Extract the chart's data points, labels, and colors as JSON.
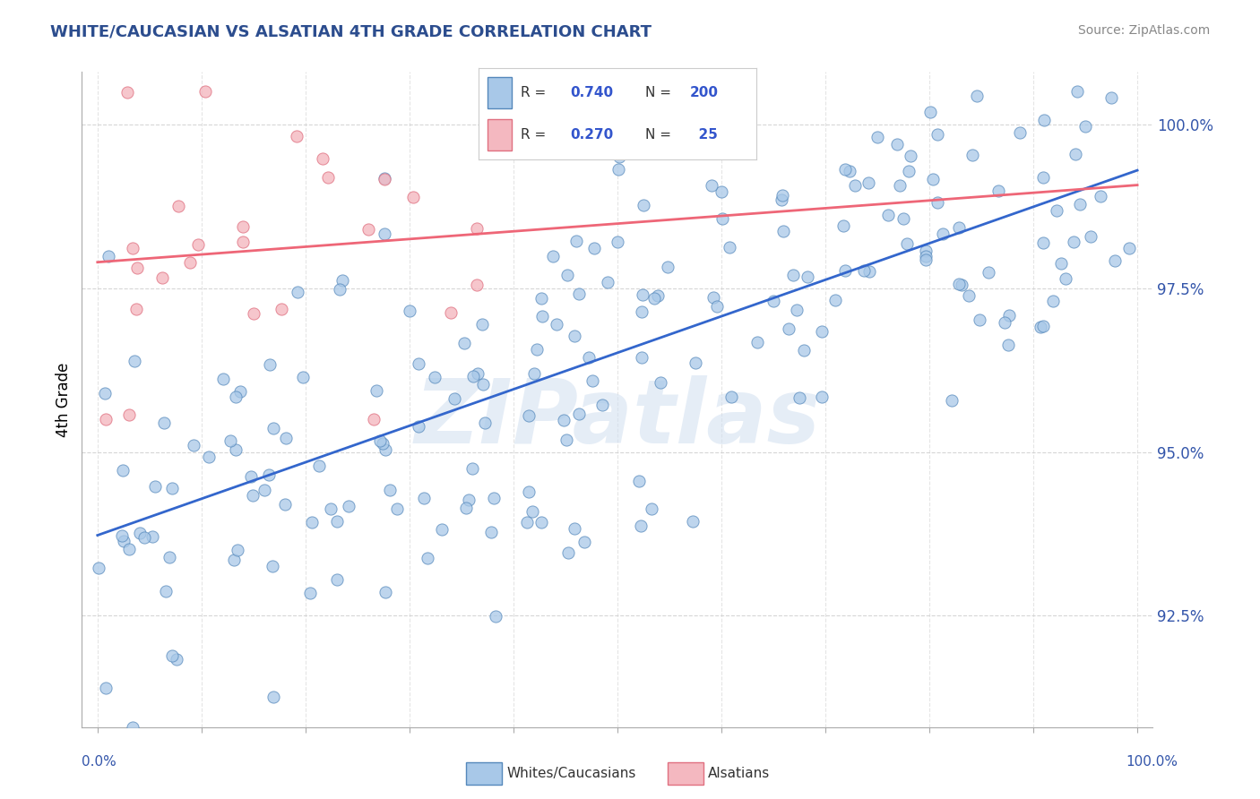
{
  "title": "WHITE/CAUCASIAN VS ALSATIAN 4TH GRADE CORRELATION CHART",
  "source": "Source: ZipAtlas.com",
  "ylabel_label": "4th Grade",
  "watermark": "ZIPatlas",
  "legend_label1": "Whites/Caucasians",
  "legend_label2": "Alsatians",
  "R_blue": 0.74,
  "N_blue": 200,
  "R_pink": 0.27,
  "N_pink": 25,
  "ytick_values": [
    0.925,
    0.95,
    0.975,
    1.0
  ],
  "ymin": 0.908,
  "ymax": 1.008,
  "xmin": -0.015,
  "xmax": 1.015,
  "blue_dot_color": "#a8c8e8",
  "blue_edge_color": "#5588bb",
  "pink_dot_color": "#f4b8c0",
  "pink_edge_color": "#e07080",
  "blue_line_color": "#3366cc",
  "pink_line_color": "#ee6677",
  "title_color": "#2c4d8e",
  "accent_color": "#3355aa",
  "background_color": "#ffffff",
  "grid_color": "#cccccc",
  "legend_text_color": "#3355cc"
}
